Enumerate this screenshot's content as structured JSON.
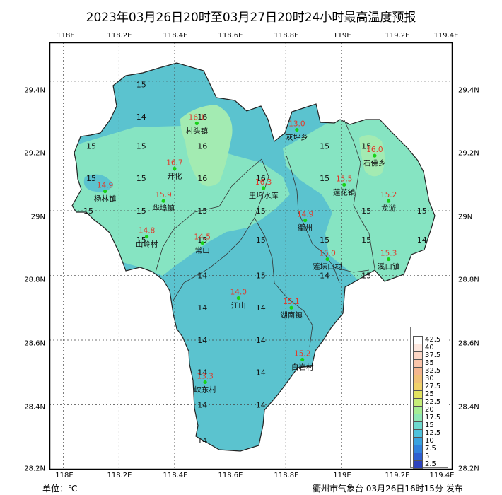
{
  "title": "2023年03月26日20时至03月27日20时24小时最高温度预报",
  "axes": {
    "lon_ticks": [
      "118E",
      "118.2E",
      "118.4E",
      "118.6E",
      "118.8E",
      "119E",
      "119.2E",
      "119.4E"
    ],
    "lon_values": [
      118.0,
      118.2,
      118.4,
      118.6,
      118.8,
      119.0,
      119.2,
      119.4
    ],
    "lat_ticks": [
      "29.4N",
      "29.2N",
      "29N",
      "28.8N",
      "28.6N",
      "28.4N",
      "28.2N"
    ],
    "lat_values": [
      29.4,
      29.2,
      29.0,
      28.8,
      28.6,
      28.4,
      28.2
    ],
    "lon_range": [
      117.95,
      119.4
    ],
    "lat_range": [
      28.2,
      29.52
    ],
    "grid": true
  },
  "stations": [
    {
      "name": "村头镇",
      "value": "16.1",
      "lon": 118.48,
      "lat": 29.27
    },
    {
      "name": "开化",
      "value": "16.7",
      "lon": 118.4,
      "lat": 29.13
    },
    {
      "name": "灰坪乡",
      "value": "13.0",
      "lon": 118.84,
      "lat": 29.25
    },
    {
      "name": "石佛乡",
      "value": "16.0",
      "lon": 119.12,
      "lat": 29.17
    },
    {
      "name": "杨林镇",
      "value": "14.9",
      "lon": 118.15,
      "lat": 29.06
    },
    {
      "name": "华埠镇",
      "value": "15.9",
      "lon": 118.36,
      "lat": 29.03
    },
    {
      "name": "里坞水库",
      "value": "16.3",
      "lon": 118.72,
      "lat": 29.07
    },
    {
      "name": "莲花镇",
      "value": "15.5",
      "lon": 119.01,
      "lat": 29.08
    },
    {
      "name": "龙游",
      "value": "15.2",
      "lon": 119.17,
      "lat": 29.03
    },
    {
      "name": "衢州",
      "value": "14.9",
      "lon": 118.87,
      "lat": 28.97
    },
    {
      "name": "山岭村",
      "value": "14.8",
      "lon": 118.3,
      "lat": 28.92
    },
    {
      "name": "常山",
      "value": "14.5",
      "lon": 118.5,
      "lat": 28.9
    },
    {
      "name": "莲坛口村",
      "value": "15.0",
      "lon": 118.95,
      "lat": 28.85
    },
    {
      "name": "溪口镇",
      "value": "15.3",
      "lon": 119.17,
      "lat": 28.85
    },
    {
      "name": "江山",
      "value": "14.0",
      "lon": 118.63,
      "lat": 28.73
    },
    {
      "name": "湖南镇",
      "value": "15.1",
      "lon": 118.82,
      "lat": 28.7
    },
    {
      "name": "白岩村",
      "value": "15.2",
      "lon": 118.86,
      "lat": 28.54
    },
    {
      "name": "峡东村",
      "value": "13.3",
      "lon": 118.51,
      "lat": 28.47
    }
  ],
  "isotherm_labels": [
    {
      "text": "15",
      "lon": 118.28,
      "lat": 29.39
    },
    {
      "text": "14",
      "lon": 118.28,
      "lat": 29.29
    },
    {
      "text": "16",
      "lon": 118.5,
      "lat": 29.29
    },
    {
      "text": "15",
      "lon": 118.1,
      "lat": 29.2
    },
    {
      "text": "15",
      "lon": 118.28,
      "lat": 29.2
    },
    {
      "text": "16",
      "lon": 118.5,
      "lat": 29.2
    },
    {
      "text": "15",
      "lon": 118.94,
      "lat": 29.2
    },
    {
      "text": "15",
      "lon": 119.09,
      "lat": 29.2
    },
    {
      "text": "15",
      "lon": 118.1,
      "lat": 29.1
    },
    {
      "text": "15",
      "lon": 118.28,
      "lat": 29.1
    },
    {
      "text": "16",
      "lon": 118.5,
      "lat": 29.1
    },
    {
      "text": "16",
      "lon": 118.71,
      "lat": 29.1
    },
    {
      "text": "15",
      "lon": 118.94,
      "lat": 29.1
    },
    {
      "text": "15",
      "lon": 118.09,
      "lat": 29.0
    },
    {
      "text": "15",
      "lon": 118.28,
      "lat": 29.0
    },
    {
      "text": "15",
      "lon": 118.5,
      "lat": 29.0
    },
    {
      "text": "15",
      "lon": 118.71,
      "lat": 29.0
    },
    {
      "text": "15",
      "lon": 119.09,
      "lat": 29.0
    },
    {
      "text": "15",
      "lon": 119.29,
      "lat": 29.0
    },
    {
      "text": "15",
      "lon": 118.28,
      "lat": 28.91
    },
    {
      "text": "15",
      "lon": 118.5,
      "lat": 28.91
    },
    {
      "text": "15",
      "lon": 118.71,
      "lat": 28.91
    },
    {
      "text": "15",
      "lon": 118.94,
      "lat": 28.91
    },
    {
      "text": "15",
      "lon": 119.09,
      "lat": 28.91
    },
    {
      "text": "14",
      "lon": 119.29,
      "lat": 28.91
    },
    {
      "text": "14",
      "lon": 118.5,
      "lat": 28.8
    },
    {
      "text": "15",
      "lon": 118.71,
      "lat": 28.8
    },
    {
      "text": "14",
      "lon": 118.94,
      "lat": 28.8
    },
    {
      "text": "15",
      "lon": 119.09,
      "lat": 28.8
    },
    {
      "text": "14",
      "lon": 118.5,
      "lat": 28.7
    },
    {
      "text": "14",
      "lon": 118.71,
      "lat": 28.7
    },
    {
      "text": "14",
      "lon": 118.5,
      "lat": 28.6
    },
    {
      "text": "14",
      "lon": 118.71,
      "lat": 28.6
    },
    {
      "text": "14",
      "lon": 118.5,
      "lat": 28.5
    },
    {
      "text": "14",
      "lon": 118.71,
      "lat": 28.5
    },
    {
      "text": "14",
      "lon": 118.5,
      "lat": 28.4
    },
    {
      "text": "14",
      "lon": 118.71,
      "lat": 28.4
    },
    {
      "text": "14",
      "lon": 118.5,
      "lat": 28.29
    }
  ],
  "legend": {
    "levels": [
      "42.5",
      "40",
      "37.5",
      "35",
      "32.5",
      "30",
      "27.5",
      "25",
      "22.5",
      "20",
      "17.5",
      "15",
      "12.5",
      "10",
      "7.5",
      "5",
      "2.5"
    ],
    "colors": [
      "#ffffff",
      "#fde7de",
      "#fcd6c5",
      "#fac5aa",
      "#f5b68f",
      "#f1c178",
      "#f0d26a",
      "#e3e35f",
      "#c7ed78",
      "#a6ee95",
      "#8fe8b5",
      "#6ed9cf",
      "#4fc2dc",
      "#3aa3e0",
      "#3182dd",
      "#2e5fd1",
      "#2d42bd"
    ]
  },
  "zone_colors": {
    "t14": "#5bc3cf",
    "t15": "#86e4c2",
    "t16": "#a3ebb2"
  },
  "unit_label": "单位：℃",
  "issuer": "衢州市气象台 03月26日16时15分 发布"
}
